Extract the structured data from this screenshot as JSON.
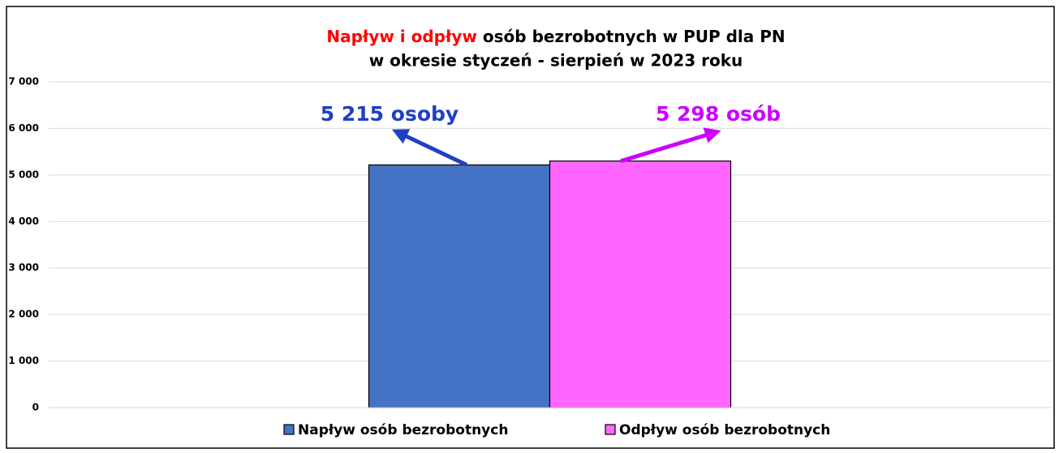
{
  "chart_data": {
    "type": "bar",
    "title_highlight": "Napływ i odpływ",
    "title_highlight_color": "#ff0000",
    "title": "osób bezrobotnych w PUP dla PN",
    "subtitle": "w okresie styczeń - sierpień  w 2023 roku",
    "categories": [
      null
    ],
    "series": [
      {
        "name": "Napływ osób bezrobotnych",
        "color": "#4472c4",
        "label_color": "#1f3fc4",
        "values": [
          5215
        ],
        "value_labels": [
          "5 215 osoby"
        ]
      },
      {
        "name": "Odpływ osób bezrobotnych",
        "color": "#ff66ff",
        "label_color": "#cc00ff",
        "values": [
          5298
        ],
        "value_labels": [
          "5 298 osób"
        ]
      }
    ],
    "ylim": [
      0,
      7000
    ],
    "yticks": [
      0,
      {
        "value": 1000,
        "label": "1 000"
      },
      {
        "value": 2000,
        "label": "2 000"
      },
      {
        "value": 3000,
        "label": "3 000"
      },
      {
        "value": 4000,
        "label": "4 000"
      },
      {
        "value": 5000,
        "label": "5 000"
      },
      {
        "value": 6000,
        "label": "6 000"
      },
      {
        "value": 7000,
        "label": "7 000"
      }
    ],
    "grid": true,
    "legend": "bottom"
  }
}
